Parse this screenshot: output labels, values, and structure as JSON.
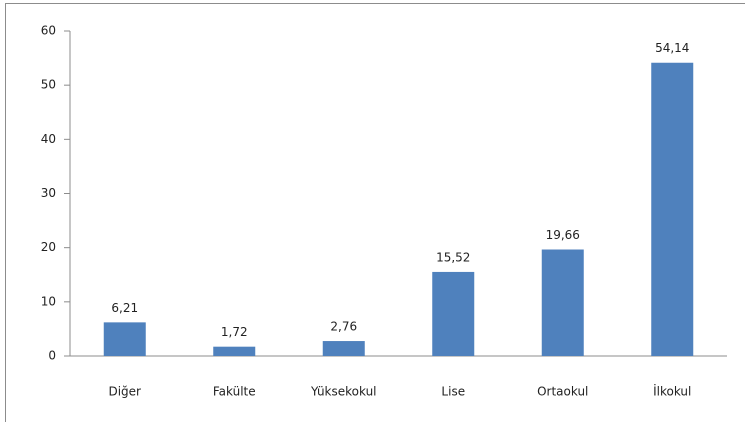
{
  "chart_data": {
    "type": "bar",
    "categories": [
      "Diğer",
      "Fakülte",
      "Yüksekokul",
      "Lise",
      "Ortaokul",
      "İlkokul"
    ],
    "values": [
      6.21,
      1.72,
      2.76,
      15.52,
      19.66,
      54.14
    ],
    "value_labels": [
      "6,21",
      "1,72",
      "2,76",
      "15,52",
      "19,66",
      "54,14"
    ],
    "color": "#4f81bd",
    "ylim": [
      0,
      60
    ],
    "yticks": [
      0,
      10,
      20,
      30,
      40,
      50,
      60
    ],
    "grid": false
  }
}
